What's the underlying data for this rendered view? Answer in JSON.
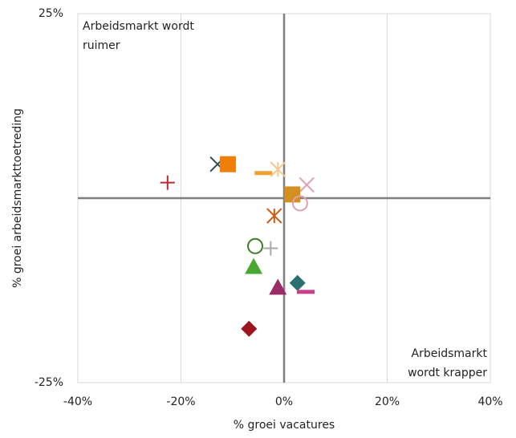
{
  "chart_data": {
    "type": "scatter",
    "xlabel": "% groei vacatures",
    "ylabel": "% groei arbeidsmarkttoetreding",
    "xlim": [
      -40,
      40
    ],
    "ylim": [
      -25,
      25
    ],
    "xticks": [
      {
        "value": -40,
        "label": "-40%"
      },
      {
        "value": -20,
        "label": "-20%"
      },
      {
        "value": 0,
        "label": "0%"
      },
      {
        "value": 20,
        "label": "20%"
      },
      {
        "value": 40,
        "label": "40%"
      }
    ],
    "yticks": [
      {
        "value": -25,
        "label": "-25%"
      },
      {
        "value": 25,
        "label": "25%"
      }
    ],
    "grid": true,
    "annotations": [
      {
        "lines": [
          "Arbeidsmarkt wordt",
          "ruimer"
        ],
        "corner": "top-left"
      },
      {
        "lines": [
          "Arbeidsmarkt",
          "wordt krapper"
        ],
        "corner": "bottom-right"
      }
    ],
    "points": [
      {
        "x": -22.6,
        "y": 2.1,
        "marker": "plus",
        "color": "#c0282f"
      },
      {
        "x": -12.9,
        "y": 4.6,
        "marker": "x",
        "color": "#2e4a52"
      },
      {
        "x": -10.9,
        "y": 4.6,
        "marker": "square",
        "color": "#f07f09"
      },
      {
        "x": -4.0,
        "y": 3.4,
        "marker": "dash",
        "color": "#f0a030"
      },
      {
        "x": -1.2,
        "y": 3.9,
        "marker": "asterisk",
        "color": "#f5c890"
      },
      {
        "x": 4.4,
        "y": 1.8,
        "marker": "x",
        "color": "#e0a0b0"
      },
      {
        "x": 1.6,
        "y": 0.5,
        "marker": "square",
        "color": "#d4901e"
      },
      {
        "x": 3.1,
        "y": -0.7,
        "marker": "circle",
        "color": "#e0a0b0"
      },
      {
        "x": -1.9,
        "y": -2.4,
        "marker": "asterisk",
        "color": "#c85a14"
      },
      {
        "x": -5.6,
        "y": -6.5,
        "marker": "circle",
        "color": "#3a7d2a"
      },
      {
        "x": -2.6,
        "y": -6.8,
        "marker": "plus",
        "color": "#aaaaaa"
      },
      {
        "x": -5.9,
        "y": -9.3,
        "marker": "triangle",
        "color": "#4aa832"
      },
      {
        "x": -1.2,
        "y": -12.1,
        "marker": "triangle",
        "color": "#9b2c6a"
      },
      {
        "x": 2.6,
        "y": -11.5,
        "marker": "diamond",
        "color": "#2a7070"
      },
      {
        "x": 4.2,
        "y": -12.7,
        "marker": "dash",
        "color": "#c8408a"
      },
      {
        "x": -6.8,
        "y": -17.7,
        "marker": "diamond",
        "color": "#a0141e"
      }
    ]
  }
}
